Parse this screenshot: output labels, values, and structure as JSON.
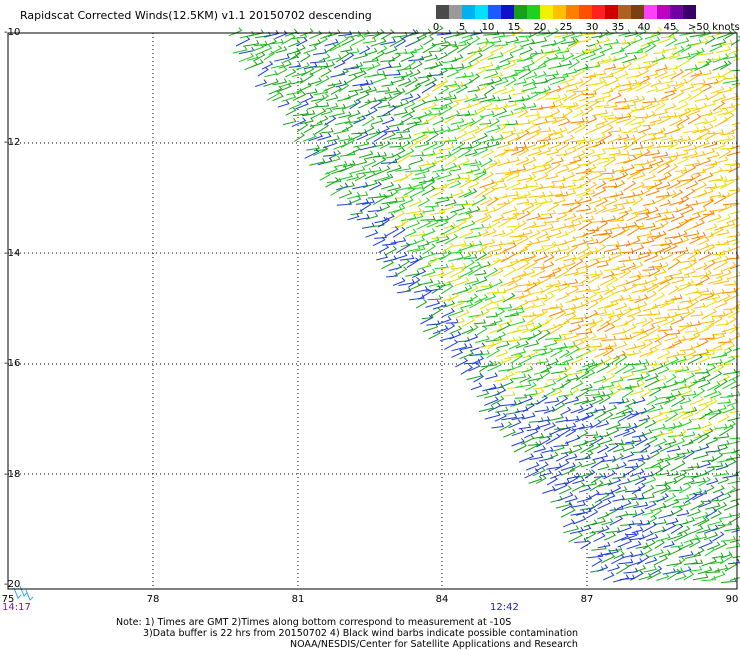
{
  "title": "Rapidscat Corrected Winds(12.5KM) v1.1 20150702 descending",
  "colorbar": {
    "tick_labels": [
      "0",
      "5",
      "10",
      "15",
      "20",
      "25",
      "30",
      "35",
      "40",
      "45"
    ],
    "unit_label": ">50 knots",
    "colors": [
      "#4a4a4a",
      "#9a9a9a",
      "#00b0f0",
      "#00e0ff",
      "#1c5cff",
      "#1010c8",
      "#18a018",
      "#20d020",
      "#f0f000",
      "#ffc000",
      "#ff8000",
      "#ff5000",
      "#ff2020",
      "#d00000",
      "#b06020",
      "#7a4010",
      "#ff40ff",
      "#c000c0",
      "#7000a0",
      "#3a006a"
    ]
  },
  "axes": {
    "lat_labels": [
      "-10",
      "-12",
      "-14",
      "-16",
      "-18",
      "-20"
    ],
    "lon_labels": [
      "75",
      "78",
      "81",
      "84",
      "87",
      "90"
    ]
  },
  "times": {
    "left": "14:17",
    "center": "12:42"
  },
  "notes": {
    "line1": "Note: 1) Times are GMT 2)Times along bottom correspond to measurement at -10S",
    "line2": "3)Data buffer is 22 hrs from 20150702 4) Black wind barbs indicate possible contamination",
    "line3": "NOAA/NESDIS/Center for Satellite Applications and Research"
  }
}
